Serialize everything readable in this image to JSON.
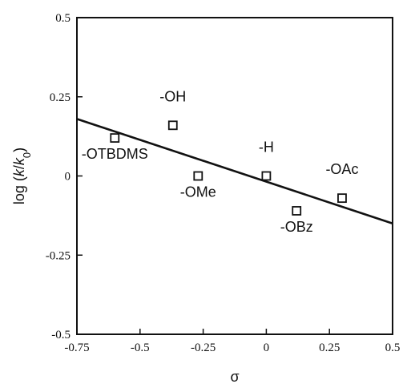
{
  "chart_data": {
    "type": "scatter",
    "title": "",
    "xlabel": "σ",
    "ylabel": "log (k/k0)",
    "ylabel_parts": [
      {
        "text": "log (",
        "style": "normal"
      },
      {
        "text": "k",
        "style": "italic"
      },
      {
        "text": "/",
        "style": "normal"
      },
      {
        "text": "k",
        "style": "italic"
      },
      {
        "text": "0",
        "style": "sub"
      },
      {
        "text": ")",
        "style": "normal"
      }
    ],
    "xlim": [
      -0.75,
      0.5
    ],
    "ylim": [
      -0.5,
      0.5
    ],
    "x_ticks": [
      -0.75,
      -0.5,
      -0.25,
      0,
      0.25,
      0.5
    ],
    "x_tick_labels": [
      "-0.75",
      "-0.5",
      "-0.25",
      "0",
      "0.25",
      "0.5"
    ],
    "y_ticks": [
      -0.5,
      -0.25,
      0,
      0.25,
      0.5
    ],
    "y_tick_labels": [
      "-0.5",
      "-0.25",
      "0",
      "0.25",
      "0.5"
    ],
    "grid": false,
    "marker": "open-square",
    "points": [
      {
        "label": "-OTBDMS",
        "x": -0.6,
        "y": 0.12,
        "label_pos": "below"
      },
      {
        "label": "-OH",
        "x": -0.37,
        "y": 0.16,
        "label_pos": "above"
      },
      {
        "label": "-OMe",
        "x": -0.27,
        "y": 0.0,
        "label_pos": "below"
      },
      {
        "label": "-H",
        "x": 0.0,
        "y": 0.0,
        "label_pos": "above"
      },
      {
        "label": "-OBz",
        "x": 0.12,
        "y": -0.11,
        "label_pos": "below"
      },
      {
        "label": "-OAc",
        "x": 0.3,
        "y": -0.07,
        "label_pos": "above"
      }
    ],
    "fit_line": {
      "x": [
        -0.75,
        0.5
      ],
      "y": [
        0.18,
        -0.15
      ]
    }
  }
}
